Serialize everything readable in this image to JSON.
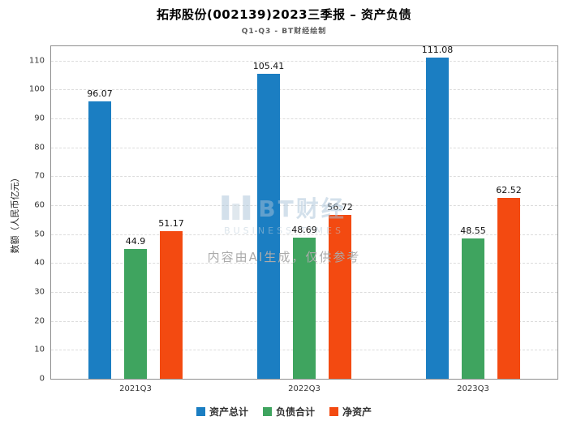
{
  "title": "拓邦股份(002139)2023三季报 – 资产负债",
  "subtitle": "Q1-Q3 - BT财经绘制",
  "watermark": {
    "logo_text": "BT财经",
    "logo_sub": "BUSINESS TIMES",
    "note": "内容由AI生成，仅供参考"
  },
  "chart_data": {
    "type": "bar",
    "categories": [
      "2021Q3",
      "2022Q3",
      "2023Q3"
    ],
    "series": [
      {
        "name": "资产总计",
        "color": "#1b7ec2",
        "values": [
          96.07,
          105.41,
          111.08
        ]
      },
      {
        "name": "负债合计",
        "color": "#3fa45f",
        "values": [
          44.9,
          48.69,
          48.55
        ]
      },
      {
        "name": "净资产",
        "color": "#f34a11",
        "values": [
          51.17,
          56.72,
          62.52
        ]
      }
    ],
    "title": "拓邦股份(002139)2023三季报 – 资产负债",
    "xlabel": "",
    "ylabel": "数额（人民币亿元）",
    "ylim": [
      0,
      115
    ],
    "yticks": [
      0,
      10,
      20,
      30,
      40,
      50,
      60,
      70,
      80,
      90,
      100,
      110
    ],
    "grid": true,
    "legend_position": "bottom"
  }
}
